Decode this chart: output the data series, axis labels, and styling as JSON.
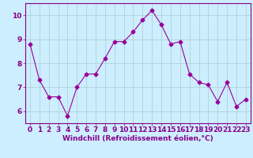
{
  "x": [
    0,
    1,
    2,
    3,
    4,
    5,
    6,
    7,
    8,
    9,
    10,
    11,
    12,
    13,
    14,
    15,
    16,
    17,
    18,
    19,
    20,
    21,
    22,
    23
  ],
  "y": [
    8.8,
    7.3,
    6.6,
    6.6,
    5.8,
    7.0,
    7.55,
    7.55,
    8.2,
    8.9,
    8.9,
    9.3,
    9.8,
    10.2,
    9.6,
    8.8,
    8.9,
    7.55,
    7.2,
    7.1,
    6.4,
    7.2,
    6.2,
    6.5
  ],
  "line_color": "#990099",
  "marker": "D",
  "marker_size": 2.5,
  "bg_color": "#cceeff",
  "grid_color": "#aacccc",
  "xlabel": "Windchill (Refroidissement éolien,°C)",
  "xlabel_fontsize": 6.5,
  "tick_fontsize": 6.5,
  "xlim": [
    -0.5,
    23.5
  ],
  "ylim": [
    5.5,
    10.5
  ],
  "yticks": [
    6,
    7,
    8,
    9,
    10
  ],
  "xticks": [
    0,
    1,
    2,
    3,
    4,
    5,
    6,
    7,
    8,
    9,
    10,
    11,
    12,
    13,
    14,
    15,
    16,
    17,
    18,
    19,
    20,
    21,
    22,
    23
  ],
  "text_color": "#880088",
  "spine_color": "#880088"
}
